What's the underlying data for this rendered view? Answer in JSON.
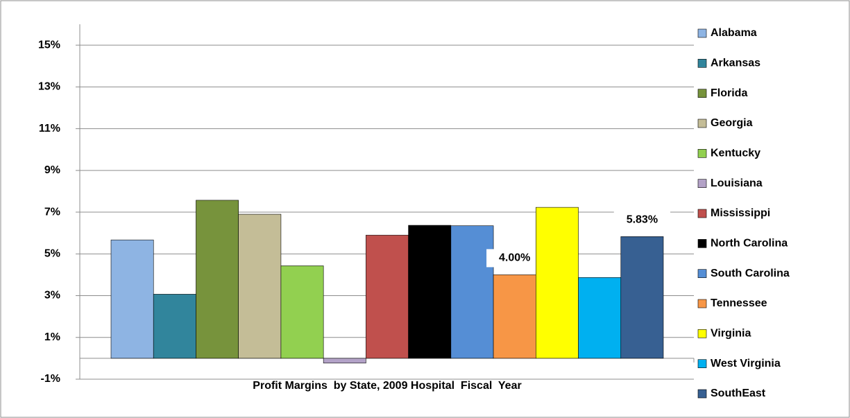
{
  "chart_data": {
    "type": "bar",
    "categories": [
      "Profit Margins  by State, 2009 Hospital  Fiscal  Year"
    ],
    "series": [
      {
        "name": "Alabama",
        "color": "#8eb4e3",
        "values": [
          5.67
        ]
      },
      {
        "name": "Arkansas",
        "color": "#31859c",
        "values": [
          3.07
        ]
      },
      {
        "name": "Florida",
        "color": "#77933c",
        "values": [
          7.57
        ]
      },
      {
        "name": "Georgia",
        "color": "#c4bd97",
        "values": [
          6.9
        ]
      },
      {
        "name": "Kentucky",
        "color": "#92d050",
        "values": [
          4.43
        ]
      },
      {
        "name": "Louisiana",
        "color": "#b3a2c7",
        "values": [
          -0.23
        ]
      },
      {
        "name": "Mississippi",
        "color": "#c0504d",
        "values": [
          5.9
        ]
      },
      {
        "name": "North Carolina",
        "color": "#000000",
        "values": [
          6.37
        ]
      },
      {
        "name": "South Carolina",
        "color": "#558ed5",
        "values": [
          6.35
        ]
      },
      {
        "name": "Tennessee",
        "color": "#f79646",
        "values": [
          4.0
        ],
        "value_labels": [
          "4.00%"
        ]
      },
      {
        "name": "Virginia",
        "color": "#ffff00",
        "values": [
          7.23
        ]
      },
      {
        "name": "West Virginia",
        "color": "#00b0f0",
        "values": [
          3.87
        ]
      },
      {
        "name": "SouthEast",
        "color": "#376092",
        "values": [
          5.83
        ],
        "value_labels": [
          "5.83%"
        ]
      }
    ],
    "ylim": [
      -1,
      16
    ],
    "yticks": [
      {
        "value": -1,
        "label": "-1%"
      },
      {
        "value": 1,
        "label": "1%"
      },
      {
        "value": 3,
        "label": "3%"
      },
      {
        "value": 5,
        "label": "5%"
      },
      {
        "value": 7,
        "label": "7%"
      },
      {
        "value": 9,
        "label": "9%"
      },
      {
        "value": 11,
        "label": "11%"
      },
      {
        "value": 13,
        "label": "13%"
      },
      {
        "value": 15,
        "label": "15%"
      }
    ],
    "grid": true,
    "legend": "right"
  }
}
